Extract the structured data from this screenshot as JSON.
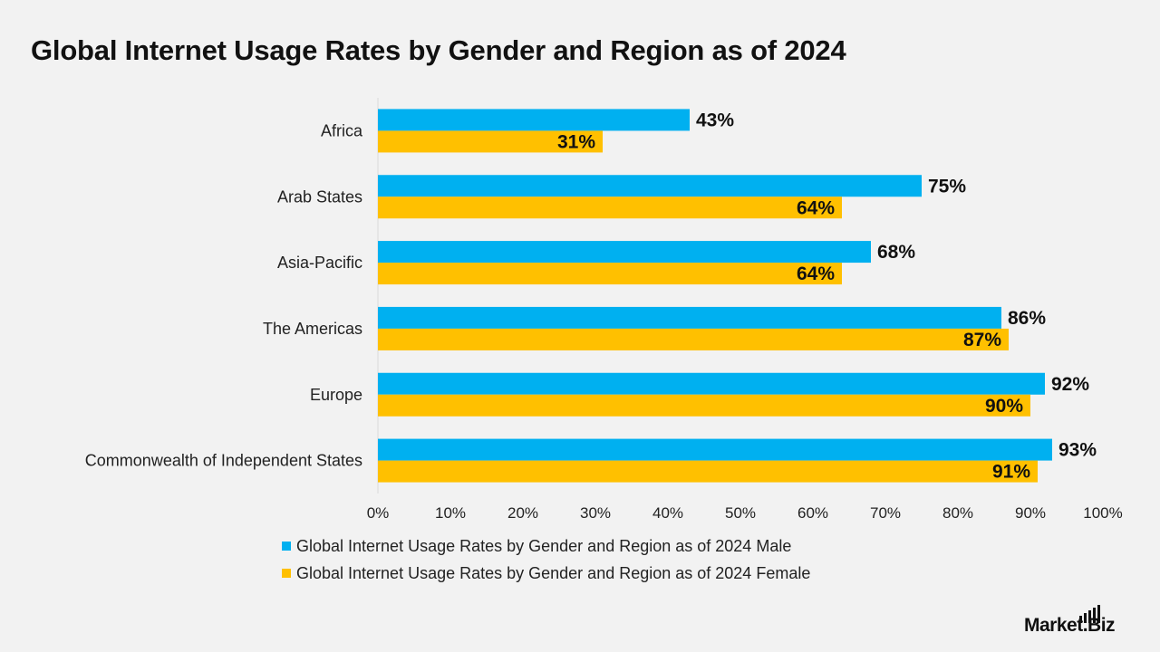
{
  "title": "Global Internet Usage Rates by Gender and Region as of 2024",
  "legend": {
    "male": "Global Internet Usage Rates by Gender and Region as of 2024 Male",
    "female": "Global Internet Usage Rates by Gender and Region as of 2024 Female"
  },
  "logo": {
    "text": "Market.Biz"
  },
  "colors": {
    "male": "#00b0f0",
    "female": "#ffc000",
    "background": "#f2f2f2"
  },
  "chart_data": {
    "type": "bar",
    "orientation": "horizontal",
    "title": "Global Internet Usage Rates by Gender and Region as of 2024",
    "categories": [
      "Africa",
      "Arab States",
      "Asia-Pacific",
      "The Americas",
      "Europe",
      "Commonwealth of Independent States"
    ],
    "series": [
      {
        "name": "Global Internet Usage Rates by Gender and Region as of 2024 Male",
        "values": [
          43,
          75,
          68,
          86,
          92,
          93
        ]
      },
      {
        "name": "Global Internet Usage Rates by Gender and Region as of 2024 Female",
        "values": [
          31,
          64,
          64,
          87,
          90,
          91
        ]
      }
    ],
    "data_labels": {
      "male": [
        "43%",
        "75%",
        "68%",
        "86%",
        "92%",
        "93%"
      ],
      "female": [
        "31%",
        "64%",
        "64%",
        "87%",
        "90%",
        "91%"
      ]
    },
    "xlim": [
      0,
      100
    ],
    "x_ticks": [
      "0%",
      "10%",
      "20%",
      "30%",
      "40%",
      "50%",
      "60%",
      "70%",
      "80%",
      "90%",
      "100%"
    ],
    "grid": false,
    "legend_position": "bottom"
  }
}
